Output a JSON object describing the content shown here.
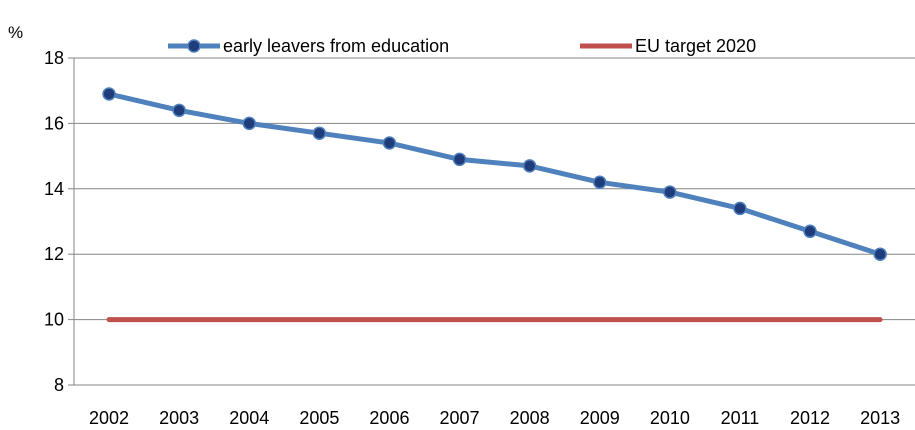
{
  "chart_data": {
    "type": "line",
    "title": "",
    "ylabel": "%",
    "xlabel": "",
    "categories": [
      "2002",
      "2003",
      "2004",
      "2005",
      "2006",
      "2007",
      "2008",
      "2009",
      "2010",
      "2011",
      "2012",
      "2013"
    ],
    "series": [
      {
        "name": "early leavers from education",
        "color": "#4f81bd",
        "marker_color": "#1f3d7a",
        "markers": true,
        "values": [
          16.9,
          16.4,
          16.0,
          15.7,
          15.4,
          14.9,
          14.7,
          14.2,
          13.9,
          13.4,
          12.7,
          12.0
        ]
      },
      {
        "name": "EU target 2020",
        "color": "#c0504d",
        "markers": false,
        "values": [
          10,
          10,
          10,
          10,
          10,
          10,
          10,
          10,
          10,
          10,
          10,
          10
        ]
      }
    ],
    "ylim": [
      8,
      18
    ],
    "yticks": [
      "8",
      "10",
      "12",
      "14",
      "16",
      "18"
    ],
    "grid": true,
    "legend": "top"
  }
}
